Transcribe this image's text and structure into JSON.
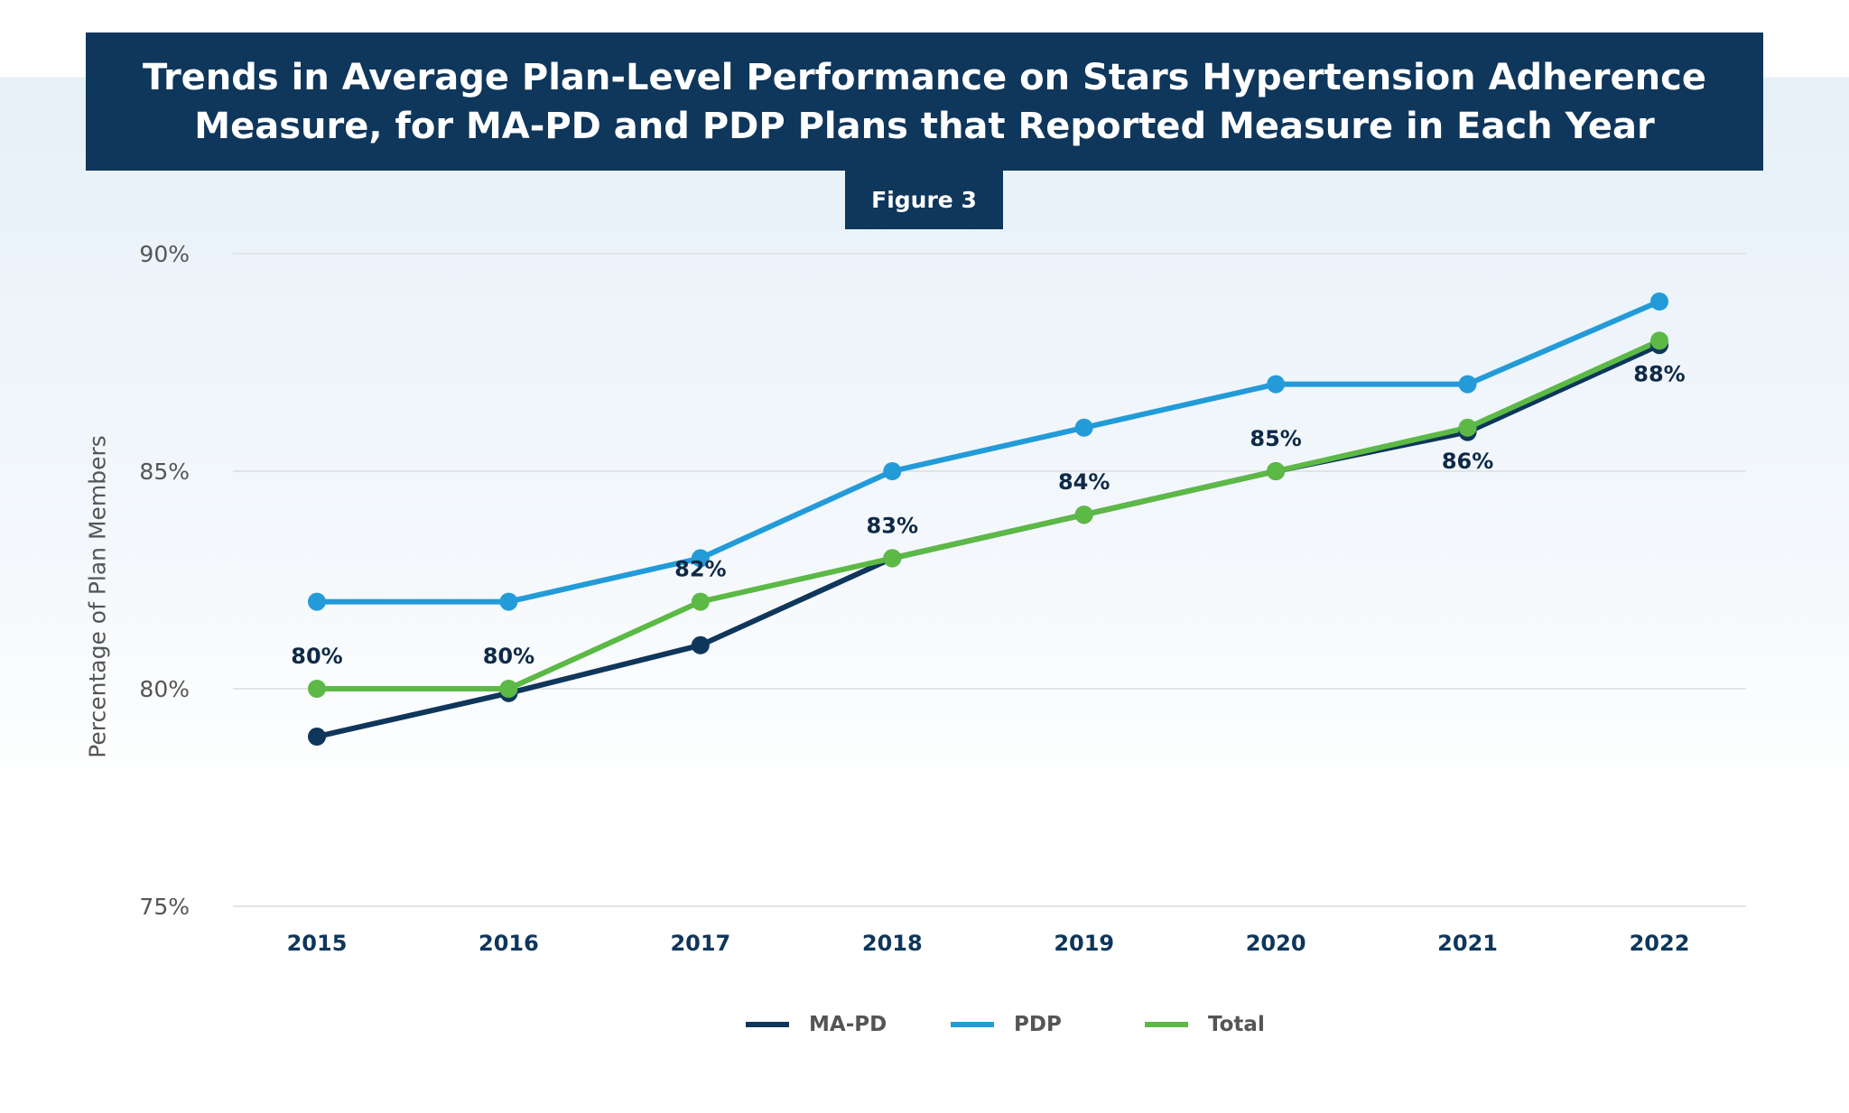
{
  "title": "Trends in Average Plan-Level Performance on Stars Hypertension Adherence Measure, for MA-PD and PDP Plans that Reported Measure in Each Year",
  "figure_label": "Figure 3",
  "chart_data": {
    "type": "line",
    "title": "Trends in Average Plan-Level Performance on Stars Hypertension Adherence Measure, for MA-PD and PDP Plans that Reported Measure in Each Year",
    "xlabel": "",
    "ylabel": "Percentage of Plan Members",
    "ylim": [
      75,
      90
    ],
    "y_ticks": [
      "75%",
      "80%",
      "85%",
      "90%"
    ],
    "y_tick_values": [
      75,
      80,
      85,
      90
    ],
    "grid": "horizontal",
    "legend": "bottom",
    "x": [
      "2015",
      "2016",
      "2017",
      "2018",
      "2019",
      "2020",
      "2021",
      "2022"
    ],
    "series": [
      {
        "name": "MA-PD",
        "color": "#0f365b",
        "values": [
          78.9,
          79.9,
          81.0,
          83.0,
          84.0,
          85.0,
          85.9,
          87.9
        ]
      },
      {
        "name": "PDP",
        "color": "#239bd8",
        "values": [
          82.0,
          82.0,
          83.0,
          85.0,
          86.0,
          87.0,
          87.0,
          88.9
        ]
      },
      {
        "name": "Total",
        "color": "#5cb946",
        "values": [
          80.0,
          80.0,
          82.0,
          83.0,
          84.0,
          85.0,
          86.0,
          88.0
        ],
        "data_labels": [
          "80%",
          "80%",
          "82%",
          "83%",
          "84%",
          "85%",
          "86%",
          "88%"
        ]
      }
    ]
  }
}
